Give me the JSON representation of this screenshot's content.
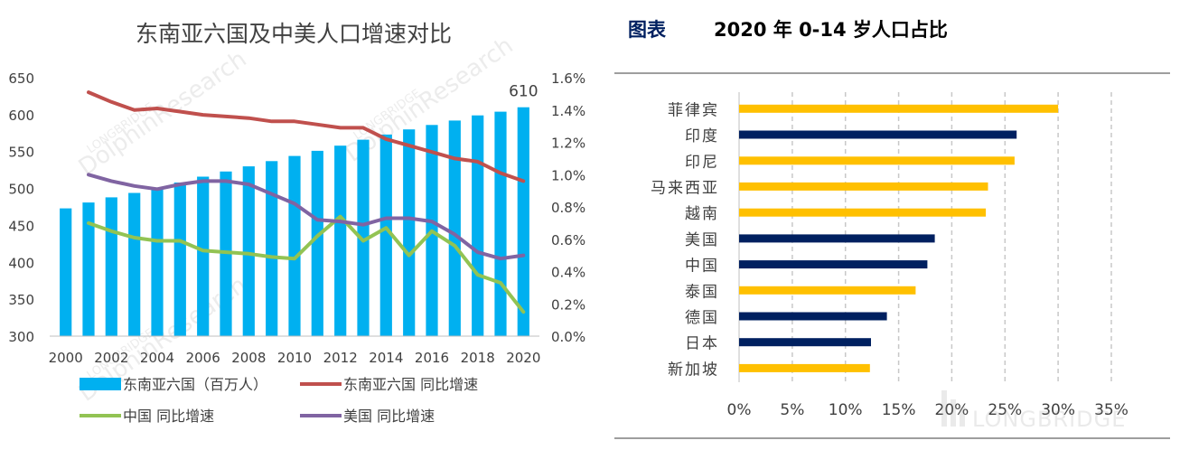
{
  "charts": [
    {
      "type": "bar+line",
      "title": "东南亚六国及中美人口增速对比",
      "categories": [
        "2000",
        "2001",
        "2002",
        "2003",
        "2004",
        "2005",
        "2006",
        "2007",
        "2008",
        "2009",
        "2010",
        "2011",
        "2012",
        "2013",
        "2014",
        "2015",
        "2016",
        "2017",
        "2018",
        "2019",
        "2020"
      ],
      "x_tick_labels": [
        "2000",
        "2002",
        "2004",
        "2006",
        "2008",
        "2010",
        "2012",
        "2014",
        "2016",
        "2018",
        "2020"
      ],
      "y_left": {
        "range": [
          300,
          650
        ],
        "ticks": [
          "300",
          "350",
          "400",
          "450",
          "500",
          "550",
          "600",
          "650"
        ]
      },
      "y_right": {
        "range": [
          0.0,
          1.6
        ],
        "ticks": [
          "0.0%",
          "0.2%",
          "0.4%",
          "0.6%",
          "0.8%",
          "1.0%",
          "1.2%",
          "1.4%",
          "1.6%"
        ]
      },
      "series": [
        {
          "name": "东南亚六国（百万人）",
          "kind": "bar",
          "axis": "left",
          "color": "#00b0f0",
          "values": [
            473,
            481,
            488,
            494,
            501,
            508,
            516,
            523,
            530,
            537,
            544,
            551,
            558,
            566,
            573,
            580,
            586,
            592,
            599,
            604,
            610
          ]
        },
        {
          "name": "东南亚六国 同比增速",
          "kind": "line",
          "axis": "right",
          "color": "#c0504d",
          "values": [
            null,
            1.51,
            1.45,
            1.4,
            1.41,
            1.39,
            1.37,
            1.36,
            1.35,
            1.33,
            1.33,
            1.31,
            1.29,
            1.29,
            1.22,
            1.18,
            1.14,
            1.1,
            1.08,
            1.01,
            0.96
          ]
        },
        {
          "name": "中国 同比增速",
          "kind": "line",
          "axis": "right",
          "color": "#92c353",
          "values": [
            null,
            0.7,
            0.65,
            0.61,
            0.59,
            0.59,
            0.53,
            0.52,
            0.51,
            0.49,
            0.48,
            0.62,
            0.74,
            0.59,
            0.67,
            0.5,
            0.65,
            0.56,
            0.38,
            0.33,
            0.15
          ]
        },
        {
          "name": "美国 同比增速",
          "kind": "line",
          "axis": "right",
          "color": "#8064a2",
          "values": [
            null,
            1.0,
            0.96,
            0.93,
            0.91,
            0.94,
            0.96,
            0.96,
            0.94,
            0.88,
            0.82,
            0.72,
            0.71,
            0.69,
            0.73,
            0.73,
            0.71,
            0.63,
            0.52,
            0.48,
            0.5
          ]
        }
      ],
      "annotation": {
        "category": "2020",
        "text": "610"
      },
      "legend": "bottom"
    },
    {
      "type": "bar",
      "orientation": "horizontal",
      "title_prefix": "图表",
      "title": "2020 年 0-14 岁人口占比",
      "categories": [
        "菲律宾",
        "印度",
        "印尼",
        "马来西亚",
        "越南",
        "美国",
        "中国",
        "泰国",
        "德国",
        "日本",
        "新加坡"
      ],
      "values": [
        30.0,
        26.1,
        25.9,
        23.4,
        23.2,
        18.4,
        17.7,
        16.6,
        13.9,
        12.4,
        12.3
      ],
      "bar_colors": [
        "#ffc000",
        "#002060",
        "#ffc000",
        "#ffc000",
        "#ffc000",
        "#002060",
        "#002060",
        "#ffc000",
        "#002060",
        "#002060",
        "#ffc000"
      ],
      "x_range": [
        0,
        35
      ],
      "x_ticks": [
        "0%",
        "5%",
        "10%",
        "15%",
        "20%",
        "25%",
        "30%",
        "35%"
      ],
      "grid": "vertical dashed"
    }
  ],
  "watermarks": {
    "left_1": "LONGBRIDGE",
    "left_2": "DolphinResearch",
    "corner": "LONGBRIDGE"
  }
}
